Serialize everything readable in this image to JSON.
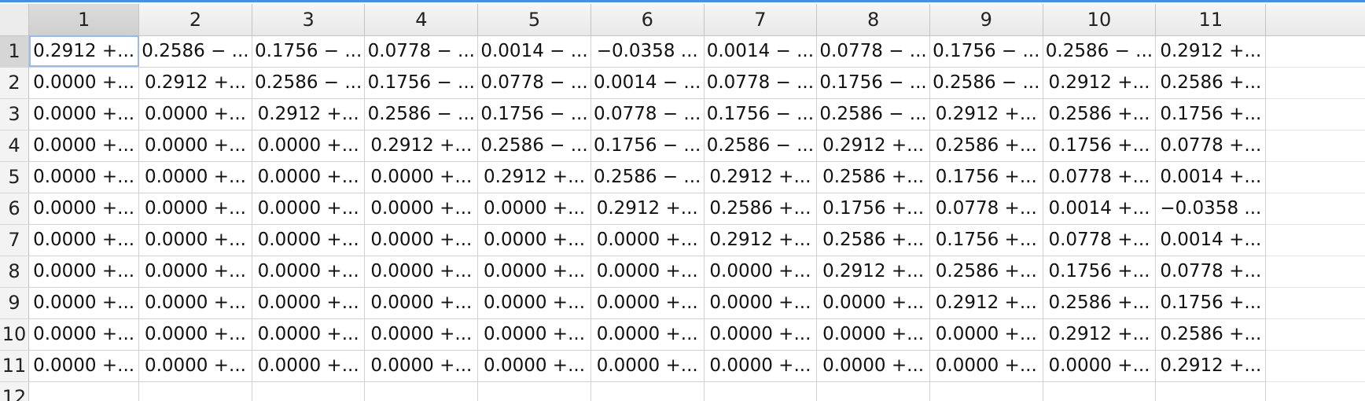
{
  "window": {
    "accent_color": "#4a90d9"
  },
  "columns": [
    "1",
    "2",
    "3",
    "4",
    "5",
    "6",
    "7",
    "8",
    "9",
    "10",
    "11"
  ],
  "rows": [
    {
      "label": "1",
      "cells": [
        "0.2912 +...",
        "0.2586 − ...",
        "0.1756 − ...",
        "0.0778 − ...",
        "0.0014 − ...",
        "−0.0358 ...",
        "0.0014 − ...",
        "0.0778 − ...",
        "0.1756 − ...",
        "0.2586 − ...",
        "0.2912 +..."
      ]
    },
    {
      "label": "2",
      "cells": [
        "0.0000 +...",
        "0.2912 +...",
        "0.2586 − ...",
        "0.1756 − ...",
        "0.0778 − ...",
        "0.0014 − ...",
        "0.0778 − ...",
        "0.1756 − ...",
        "0.2586 − ...",
        "0.2912 +...",
        "0.2586 +..."
      ]
    },
    {
      "label": "3",
      "cells": [
        "0.0000 +...",
        "0.0000 +...",
        "0.2912 +...",
        "0.2586 − ...",
        "0.1756 − ...",
        "0.0778 − ...",
        "0.1756 − ...",
        "0.2586 − ...",
        "0.2912 +...",
        "0.2586 +...",
        "0.1756 +..."
      ]
    },
    {
      "label": "4",
      "cells": [
        "0.0000 +...",
        "0.0000 +...",
        "0.0000 +...",
        "0.2912 +...",
        "0.2586 − ...",
        "0.1756 − ...",
        "0.2586 − ...",
        "0.2912 +...",
        "0.2586 +...",
        "0.1756 +...",
        "0.0778 +..."
      ]
    },
    {
      "label": "5",
      "cells": [
        "0.0000 +...",
        "0.0000 +...",
        "0.0000 +...",
        "0.0000 +...",
        "0.2912 +...",
        "0.2586 − ...",
        "0.2912 +...",
        "0.2586 +...",
        "0.1756 +...",
        "0.0778 +...",
        "0.0014 +..."
      ]
    },
    {
      "label": "6",
      "cells": [
        "0.0000 +...",
        "0.0000 +...",
        "0.0000 +...",
        "0.0000 +...",
        "0.0000 +...",
        "0.2912 +...",
        "0.2586 +...",
        "0.1756 +...",
        "0.0778 +...",
        "0.0014 +...",
        "−0.0358 ..."
      ]
    },
    {
      "label": "7",
      "cells": [
        "0.0000 +...",
        "0.0000 +...",
        "0.0000 +...",
        "0.0000 +...",
        "0.0000 +...",
        "0.0000 +...",
        "0.2912 +...",
        "0.2586 +...",
        "0.1756 +...",
        "0.0778 +...",
        "0.0014 +..."
      ]
    },
    {
      "label": "8",
      "cells": [
        "0.0000 +...",
        "0.0000 +...",
        "0.0000 +...",
        "0.0000 +...",
        "0.0000 +...",
        "0.0000 +...",
        "0.0000 +...",
        "0.2912 +...",
        "0.2586 +...",
        "0.1756 +...",
        "0.0778 +..."
      ]
    },
    {
      "label": "9",
      "cells": [
        "0.0000 +...",
        "0.0000 +...",
        "0.0000 +...",
        "0.0000 +...",
        "0.0000 +...",
        "0.0000 +...",
        "0.0000 +...",
        "0.0000 +...",
        "0.2912 +...",
        "0.2586 +...",
        "0.1756 +..."
      ]
    },
    {
      "label": "10",
      "cells": [
        "0.0000 +...",
        "0.0000 +...",
        "0.0000 +...",
        "0.0000 +...",
        "0.0000 +...",
        "0.0000 +...",
        "0.0000 +...",
        "0.0000 +...",
        "0.0000 +...",
        "0.2912 +...",
        "0.2586 +..."
      ]
    },
    {
      "label": "11",
      "cells": [
        "0.0000 +...",
        "0.0000 +...",
        "0.0000 +...",
        "0.0000 +...",
        "0.0000 +...",
        "0.0000 +...",
        "0.0000 +...",
        "0.0000 +...",
        "0.0000 +...",
        "0.0000 +...",
        "0.2912 +..."
      ]
    },
    {
      "label": "12",
      "cells": [
        "",
        "",
        "",
        "",
        "",
        "",
        "",
        "",
        "",
        "",
        ""
      ]
    }
  ]
}
